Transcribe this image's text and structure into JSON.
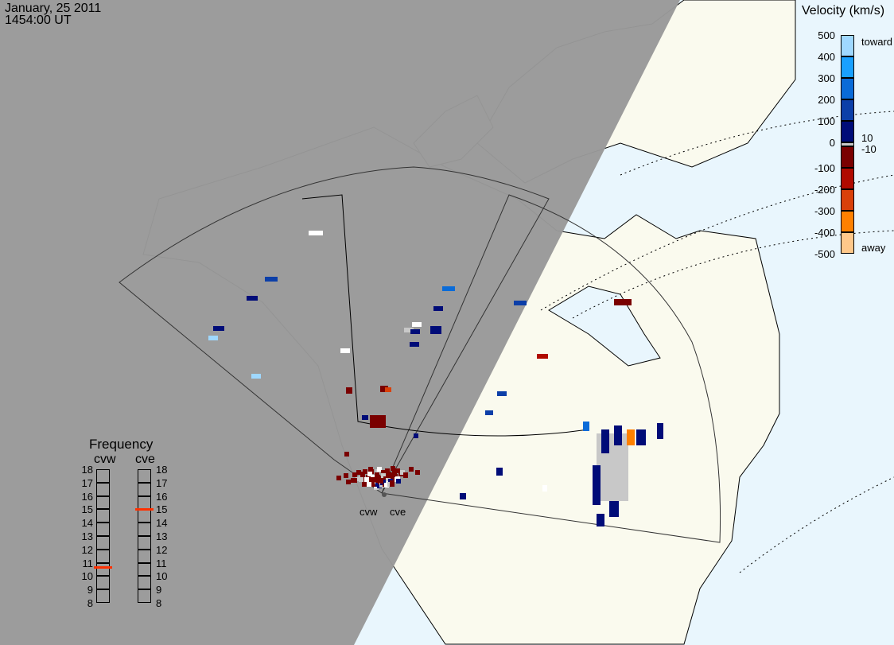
{
  "header": {
    "date": "January, 25 2011",
    "time": "1454:00 UT"
  },
  "colorbar": {
    "title": "Velocity (km/s)",
    "ticks": [
      "500",
      "400",
      "300",
      "200",
      "100",
      "0",
      "-100",
      "-200",
      "-300",
      "-400",
      "-500"
    ],
    "toward_label": "toward",
    "away_label": "away",
    "ground_scatter_upper": "10",
    "ground_scatter_lower": "-10",
    "colors": [
      "#9fd8ff",
      "#19a0ff",
      "#0a6bd8",
      "#0c3fa8",
      "#000c78",
      "#7a0000",
      "#b00a00",
      "#d9400a",
      "#ff8000",
      "#ffc88a"
    ],
    "ground_scatter_color": "#c8c8c8"
  },
  "frequency": {
    "title": "Frequency",
    "radars": [
      {
        "name": "cvw",
        "mhz": 10.7
      },
      {
        "name": "cve",
        "mhz": 15.0
      }
    ],
    "ticks": [
      "18",
      "17",
      "16",
      "15",
      "14",
      "13",
      "12",
      "11",
      "10",
      "9",
      "8"
    ],
    "marker_color": "#ff3000"
  },
  "radar_labels": [
    "cvw",
    "cve"
  ],
  "colors": {
    "night": "#999999",
    "land": "#fafaee",
    "ocean": "#e9f6fd"
  }
}
